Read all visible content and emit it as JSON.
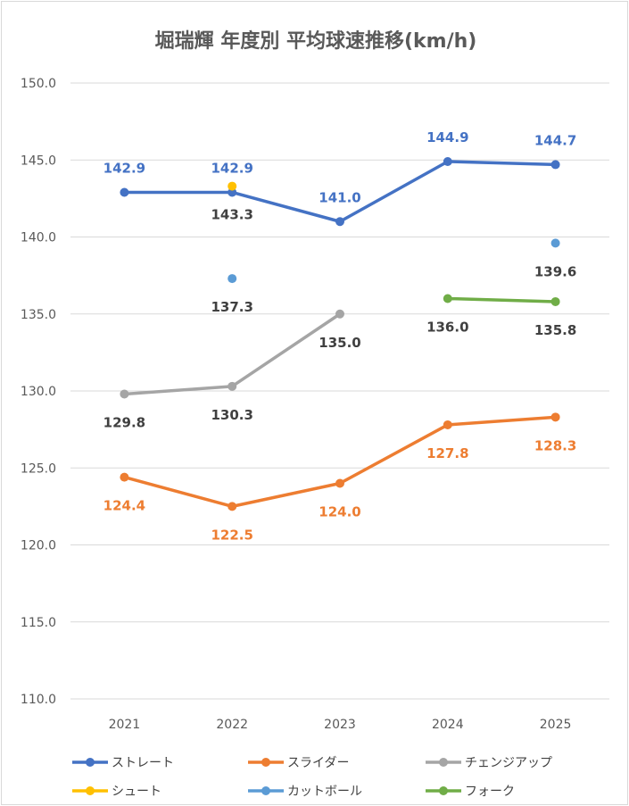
{
  "chart_data": {
    "type": "line",
    "title": "堀瑞輝 年度別 平均球速推移(km/h)",
    "xlabel": "",
    "ylabel": "",
    "categories": [
      "2021",
      "2022",
      "2023",
      "2024",
      "2025"
    ],
    "ylim": [
      110.0,
      150.0
    ],
    "yticks": [
      "150.0",
      "145.0",
      "140.0",
      "135.0",
      "130.0",
      "125.0",
      "120.0",
      "115.0",
      "110.0"
    ],
    "grid": true,
    "legend_position": "bottom",
    "series": [
      {
        "name": "ストレート",
        "color": "#4472c4",
        "values": [
          142.9,
          142.9,
          141.0,
          144.9,
          144.7
        ],
        "labels": [
          "142.9",
          "142.9",
          "141.0",
          "144.9",
          "144.7"
        ],
        "label_pos": [
          "above",
          "above",
          "above",
          "above",
          "above"
        ]
      },
      {
        "name": "スライダー",
        "color": "#ed7d31",
        "values": [
          124.4,
          122.5,
          124.0,
          127.8,
          128.3
        ],
        "labels": [
          "124.4",
          "122.5",
          "124.0",
          "127.8",
          "128.3"
        ],
        "label_pos": [
          "below",
          "below",
          "below",
          "below",
          "below"
        ]
      },
      {
        "name": "チェンジアップ",
        "color": "#a5a5a5",
        "label_color": "#404040",
        "values": [
          129.8,
          130.3,
          135.0,
          null,
          null
        ],
        "labels": [
          "129.8",
          "130.3",
          "135.0",
          null,
          null
        ],
        "label_pos": [
          "below",
          "below",
          "below",
          null,
          null
        ]
      },
      {
        "name": "シュート",
        "color": "#ffc000",
        "label_color": "#404040",
        "values": [
          null,
          143.3,
          null,
          null,
          null
        ],
        "labels": [
          null,
          "143.3",
          null,
          null,
          null
        ],
        "label_pos": [
          null,
          "below",
          null,
          null,
          null
        ]
      },
      {
        "name": "カットボール",
        "color": "#5b9bd5",
        "label_color": "#404040",
        "values": [
          null,
          137.3,
          null,
          null,
          139.6
        ],
        "labels": [
          null,
          "137.3",
          null,
          null,
          "139.6"
        ],
        "label_pos": [
          null,
          "below",
          null,
          null,
          "below"
        ]
      },
      {
        "name": "フォーク",
        "color": "#70ad47",
        "label_color": "#404040",
        "values": [
          null,
          null,
          null,
          136.0,
          135.8
        ],
        "labels": [
          null,
          null,
          null,
          "136.0",
          "135.8"
        ],
        "label_pos": [
          null,
          null,
          null,
          "below",
          "below"
        ]
      }
    ]
  }
}
